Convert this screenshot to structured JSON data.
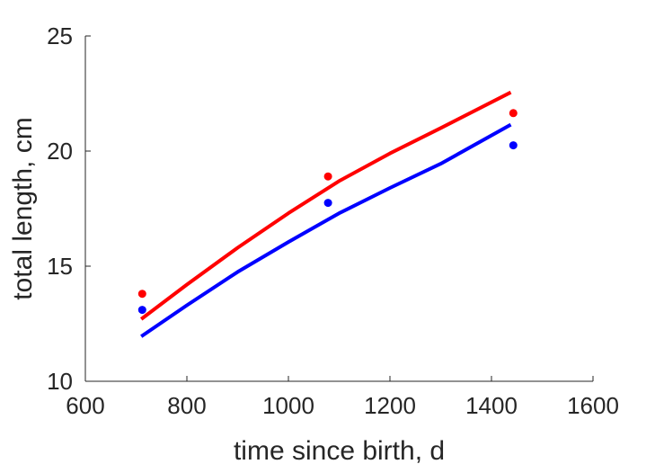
{
  "chart_data": {
    "type": "line",
    "title": "",
    "xlabel": "time since birth, d",
    "ylabel": "total length, cm",
    "xlim": [
      600,
      1600
    ],
    "ylim": [
      10,
      25
    ],
    "xticks": [
      600,
      800,
      1000,
      1200,
      1400,
      1600
    ],
    "yticks": [
      10,
      15,
      20,
      25
    ],
    "xtick_labels": [
      "600",
      "800",
      "1000",
      "1200",
      "1400",
      "1600"
    ],
    "ytick_labels": [
      "10",
      "15",
      "20",
      "25"
    ],
    "grid": false,
    "legend": "none",
    "series": [
      {
        "kind": "line",
        "color": "#ff0000",
        "x": [
          710,
          800,
          900,
          1000,
          1100,
          1200,
          1300,
          1438
        ],
        "y": [
          12.7,
          14.2,
          15.8,
          17.3,
          18.7,
          19.9,
          21.0,
          22.55
        ]
      },
      {
        "kind": "line",
        "color": "#0000ff",
        "x": [
          710,
          800,
          900,
          1000,
          1100,
          1200,
          1300,
          1438
        ],
        "y": [
          11.95,
          13.3,
          14.75,
          16.05,
          17.3,
          18.4,
          19.45,
          21.15
        ]
      },
      {
        "kind": "scatter",
        "color": "#ff0000",
        "x": [
          712,
          1078,
          1443
        ],
        "y": [
          13.8,
          18.9,
          21.65
        ]
      },
      {
        "kind": "scatter",
        "color": "#0000ff",
        "x": [
          712,
          1078,
          1443
        ],
        "y": [
          13.1,
          17.75,
          20.25
        ]
      }
    ]
  }
}
